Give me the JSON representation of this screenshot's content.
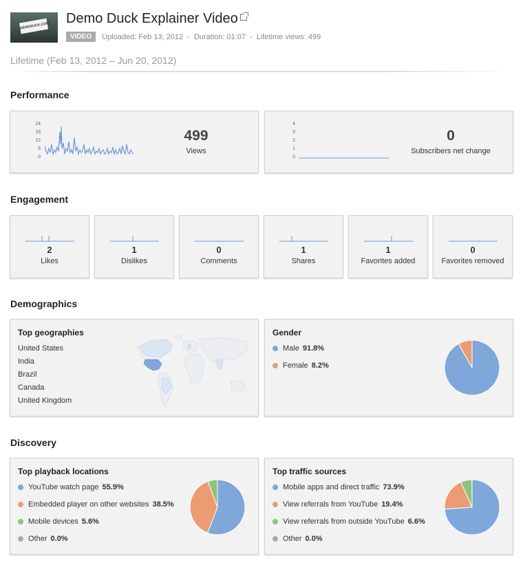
{
  "video": {
    "thumb_text": "DEMODUCK.COM",
    "title": "Demo Duck Explainer Video",
    "badge": "VIDEO",
    "uploaded": "Uploaded: Feb 13, 2012",
    "duration": "Duration: 01:07",
    "lifetime_views": "Lifetime views: 499",
    "separator": "-"
  },
  "range": "Lifetime (Feb 13, 2012 – Jun 20, 2012)",
  "sections": {
    "performance": "Performance",
    "engagement": "Engagement",
    "demographics": "Demographics",
    "discovery": "Discovery"
  },
  "performance": {
    "views": {
      "value": "499",
      "label": "Views",
      "ticks": [
        "24",
        "18",
        "12",
        "6",
        "0"
      ]
    },
    "subscribers": {
      "value": "0",
      "label": "Subscribers net change",
      "ticks": [
        "4",
        "3",
        "2",
        "1",
        "0"
      ]
    }
  },
  "engagement": [
    {
      "value": "2",
      "label": "Likes"
    },
    {
      "value": "1",
      "label": "Dislikes"
    },
    {
      "value": "0",
      "label": "Comments"
    },
    {
      "value": "1",
      "label": "Shares"
    },
    {
      "value": "1",
      "label": "Favorites added"
    },
    {
      "value": "0",
      "label": "Favorites removed"
    }
  ],
  "geographies": {
    "title": "Top geographies",
    "items": [
      "United States",
      "India",
      "Brazil",
      "Canada",
      "United Kingdom"
    ]
  },
  "gender": {
    "title": "Gender",
    "items": [
      {
        "label": "Male",
        "value": "91.8%",
        "pct": 91.8,
        "color": "#7fa7d9"
      },
      {
        "label": "Female",
        "value": "8.2%",
        "pct": 8.2,
        "color": "#eb9c73"
      }
    ]
  },
  "playback": {
    "title": "Top playback locations",
    "items": [
      {
        "label": "YouTube watch page",
        "value": "55.9%",
        "pct": 55.9,
        "color": "#7fa7d9"
      },
      {
        "label": "Embedded player on other websites",
        "value": "38.5%",
        "pct": 38.5,
        "color": "#eb9c73"
      },
      {
        "label": "Mobile devices",
        "value": "5.6%",
        "pct": 5.6,
        "color": "#8cc47d"
      },
      {
        "label": "Other",
        "value": "0.0%",
        "pct": 0.0,
        "color": "#aaaaaa"
      }
    ]
  },
  "traffic": {
    "title": "Top traffic sources",
    "items": [
      {
        "label": "Mobile apps and direct traffic",
        "value": "73.9%",
        "pct": 73.9,
        "color": "#7fa7d9"
      },
      {
        "label": "View referrals from YouTube",
        "value": "19.4%",
        "pct": 19.4,
        "color": "#eb9c73"
      },
      {
        "label": "View referrals from outside YouTube",
        "value": "6.6%",
        "pct": 6.6,
        "color": "#8cc47d"
      },
      {
        "label": "Other",
        "value": "0.0%",
        "pct": 0.0,
        "color": "#aaaaaa"
      }
    ]
  }
}
